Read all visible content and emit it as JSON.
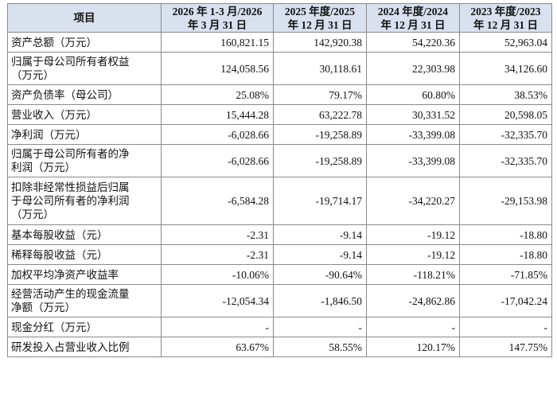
{
  "header": {
    "item": "项目",
    "col1_line1": "2026 年 1-3 月/2026",
    "col1_line2": "年 3 月 31 日",
    "col2_line1": "2025 年度/2025",
    "col2_line2": "年 12 月 31 日",
    "col3_line1": "2024 年度/2024",
    "col3_line2": "年 12 月 31 日",
    "col4_line1": "2023 年度/2023",
    "col4_line2": "年 12 月 31 日"
  },
  "rows": [
    {
      "label": [
        "资产总额（万元）"
      ],
      "values": [
        "160,821.15",
        "142,920.38",
        "54,220.36",
        "52,963.04"
      ]
    },
    {
      "label": [
        "归属于母公司所有者权益",
        "（万元）"
      ],
      "values": [
        "124,058.56",
        "30,118.61",
        "22,303.98",
        "34,126.60"
      ]
    },
    {
      "label": [
        "资产负债率（母公司）"
      ],
      "values": [
        "25.08%",
        "79.17%",
        "60.80%",
        "38.53%"
      ]
    },
    {
      "label": [
        "营业收入（万元）"
      ],
      "values": [
        "15,444.28",
        "63,222.78",
        "30,331.52",
        "20,598.05"
      ]
    },
    {
      "label": [
        "净利润（万元）"
      ],
      "values": [
        "-6,028.66",
        "-19,258.89",
        "-33,399.08",
        "-32,335.70"
      ]
    },
    {
      "label": [
        "归属于母公司所有者的净",
        "利润（万元）"
      ],
      "values": [
        "-6,028.66",
        "-19,258.89",
        "-33,399.08",
        "-32,335.70"
      ]
    },
    {
      "label": [
        "扣除非经常性损益后归属",
        "于母公司所有者的净利润",
        "（万元）"
      ],
      "values": [
        "-6,584.28",
        "-19,714.17",
        "-34,220.27",
        "-29,153.98"
      ]
    },
    {
      "label": [
        "基本每股收益（元）"
      ],
      "values": [
        "-2.31",
        "-9.14",
        "-19.12",
        "-18.80"
      ]
    },
    {
      "label": [
        "稀释每股收益（元）"
      ],
      "values": [
        "-2.31",
        "-9.14",
        "-19.12",
        "-18.80"
      ]
    },
    {
      "label": [
        "加权平均净资产收益率"
      ],
      "values": [
        "-10.06%",
        "-90.64%",
        "-118.21%",
        "-71.85%"
      ]
    },
    {
      "label": [
        "经营活动产生的现金流量",
        "净额（万元）"
      ],
      "values": [
        "-12,054.34",
        "-1,846.50",
        "-24,862.86",
        "-17,042.24"
      ]
    },
    {
      "label": [
        "现金分红（万元）"
      ],
      "values": [
        "-",
        "-",
        "-",
        "-"
      ]
    },
    {
      "label": [
        "研发投入占营业收入比例"
      ],
      "values": [
        "63.67%",
        "58.55%",
        "120.17%",
        "147.75%"
      ]
    }
  ]
}
